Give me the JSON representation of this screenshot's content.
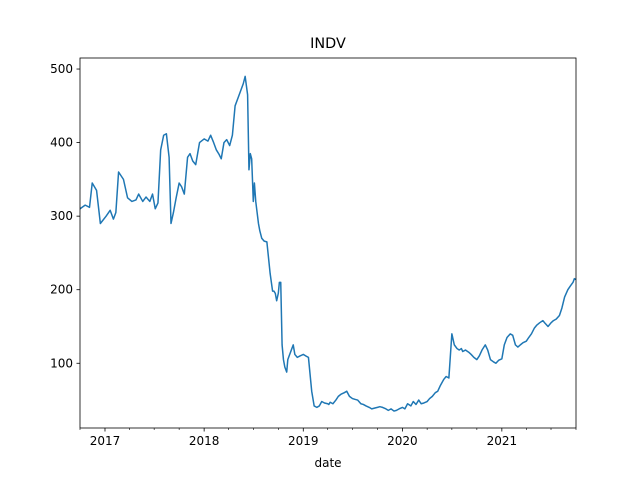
{
  "chart_data": {
    "type": "line",
    "title": "INDV",
    "xlabel": "date",
    "ylabel": "",
    "xlim": [
      "2016-10-01",
      "2021-10-01"
    ],
    "ylim": [
      12,
      515
    ],
    "x_ticks": [
      "2017",
      "2018",
      "2019",
      "2020",
      "2021"
    ],
    "y_ticks": [
      100,
      200,
      300,
      400,
      500
    ],
    "grid": false,
    "line_color": "#1f77b4",
    "series": [
      {
        "x": [
          "2016-10-01",
          "2016-10-20",
          "2016-11-05",
          "2016-11-15",
          "2016-12-01",
          "2016-12-15",
          "2017-01-05",
          "2017-01-20",
          "2017-02-01",
          "2017-02-10",
          "2017-02-20",
          "2017-03-10",
          "2017-03-25",
          "2017-04-10",
          "2017-04-25",
          "2017-05-05",
          "2017-05-20",
          "2017-06-01",
          "2017-06-15",
          "2017-06-25",
          "2017-07-05",
          "2017-07-15",
          "2017-07-25",
          "2017-08-05",
          "2017-08-15",
          "2017-08-25",
          "2017-09-01",
          "2017-09-10",
          "2017-09-20",
          "2017-10-01",
          "2017-10-10",
          "2017-10-20",
          "2017-11-01",
          "2017-11-10",
          "2017-11-20",
          "2017-12-01",
          "2017-12-15",
          "2018-01-01",
          "2018-01-15",
          "2018-01-25",
          "2018-02-05",
          "2018-02-15",
          "2018-02-25",
          "2018-03-05",
          "2018-03-15",
          "2018-03-25",
          "2018-04-05",
          "2018-04-15",
          "2018-04-25",
          "2018-05-05",
          "2018-05-15",
          "2018-05-25",
          "2018-06-01",
          "2018-06-10",
          "2018-06-15",
          "2018-06-20",
          "2018-06-25",
          "2018-07-01",
          "2018-07-05",
          "2018-07-10",
          "2018-07-15",
          "2018-07-20",
          "2018-07-25",
          "2018-08-01",
          "2018-08-10",
          "2018-08-20",
          "2018-09-01",
          "2018-09-10",
          "2018-09-15",
          "2018-09-20",
          "2018-09-25",
          "2018-10-01",
          "2018-10-05",
          "2018-10-10",
          "2018-10-15",
          "2018-10-20",
          "2018-10-25",
          "2018-11-01",
          "2018-11-05",
          "2018-11-10",
          "2018-11-15",
          "2018-11-20",
          "2018-11-25",
          "2018-12-01",
          "2018-12-10",
          "2018-12-20",
          "2019-01-01",
          "2019-01-10",
          "2019-01-20",
          "2019-02-01",
          "2019-02-10",
          "2019-02-20",
          "2019-03-01",
          "2019-03-10",
          "2019-03-20",
          "2019-04-01",
          "2019-04-05",
          "2019-04-10",
          "2019-04-20",
          "2019-05-01",
          "2019-05-10",
          "2019-05-20",
          "2019-06-01",
          "2019-06-10",
          "2019-06-20",
          "2019-07-01",
          "2019-07-10",
          "2019-07-20",
          "2019-08-01",
          "2019-08-10",
          "2019-08-20",
          "2019-09-01",
          "2019-09-10",
          "2019-09-20",
          "2019-10-01",
          "2019-10-10",
          "2019-10-20",
          "2019-11-01",
          "2019-11-10",
          "2019-11-20",
          "2019-12-01",
          "2019-12-10",
          "2019-12-20",
          "2020-01-01",
          "2020-01-10",
          "2020-01-20",
          "2020-02-01",
          "2020-02-10",
          "2020-02-20",
          "2020-03-01",
          "2020-03-10",
          "2020-03-20",
          "2020-04-01",
          "2020-04-10",
          "2020-04-20",
          "2020-05-01",
          "2020-05-10",
          "2020-05-20",
          "2020-06-01",
          "2020-06-10",
          "2020-06-20",
          "2020-07-01",
          "2020-07-10",
          "2020-07-20",
          "2020-07-28",
          "2020-08-05",
          "2020-08-10",
          "2020-08-20",
          "2020-09-01",
          "2020-09-10",
          "2020-09-20",
          "2020-10-01",
          "2020-10-10",
          "2020-10-20",
          "2020-11-01",
          "2020-11-10",
          "2020-11-20",
          "2020-12-01",
          "2020-12-10",
          "2020-12-20",
          "2021-01-01",
          "2021-01-10",
          "2021-01-20",
          "2021-02-01",
          "2021-02-10",
          "2021-02-20",
          "2021-03-01",
          "2021-03-10",
          "2021-03-20",
          "2021-04-01",
          "2021-04-10",
          "2021-04-20",
          "2021-05-01",
          "2021-05-10",
          "2021-05-20",
          "2021-06-01",
          "2021-06-10",
          "2021-06-20",
          "2021-07-01",
          "2021-07-10",
          "2021-07-20",
          "2021-08-01",
          "2021-08-10",
          "2021-08-20",
          "2021-09-01",
          "2021-09-10",
          "2021-09-20",
          "2021-09-25",
          "2021-10-01"
        ],
        "y": [
          310,
          315,
          312,
          345,
          335,
          290,
          300,
          308,
          296,
          305,
          360,
          350,
          325,
          320,
          322,
          330,
          320,
          326,
          320,
          330,
          310,
          318,
          390,
          410,
          412,
          380,
          290,
          305,
          325,
          345,
          340,
          330,
          380,
          385,
          375,
          370,
          400,
          405,
          402,
          410,
          400,
          390,
          384,
          378,
          400,
          404,
          396,
          410,
          450,
          460,
          470,
          480,
          490,
          465,
          363,
          385,
          378,
          320,
          345,
          320,
          305,
          290,
          280,
          270,
          266,
          265,
          222,
          198,
          198,
          195,
          185,
          195,
          210,
          210,
          125,
          105,
          95,
          88,
          105,
          110,
          115,
          120,
          125,
          112,
          108,
          110,
          112,
          110,
          108,
          62,
          42,
          40,
          42,
          48,
          46,
          45,
          44,
          47,
          45,
          50,
          55,
          58,
          60,
          62,
          55,
          52,
          51,
          50,
          45,
          44,
          42,
          40,
          38,
          39,
          40,
          41,
          40,
          38,
          36,
          38,
          35,
          36,
          38,
          40,
          38,
          45,
          42,
          48,
          44,
          50,
          45,
          46,
          48,
          52,
          55,
          60,
          62,
          70,
          78,
          82,
          80,
          140,
          125,
          120,
          118,
          120,
          116,
          118,
          115,
          112,
          108,
          105,
          110,
          118,
          125,
          118,
          105,
          102,
          100,
          104,
          106,
          125,
          135,
          140,
          138,
          125,
          122,
          125,
          128,
          130,
          135,
          140,
          148,
          152,
          155,
          158,
          154,
          150,
          155,
          158,
          160,
          165,
          175,
          190,
          200,
          205,
          210,
          215,
          214
        ]
      }
    ]
  }
}
